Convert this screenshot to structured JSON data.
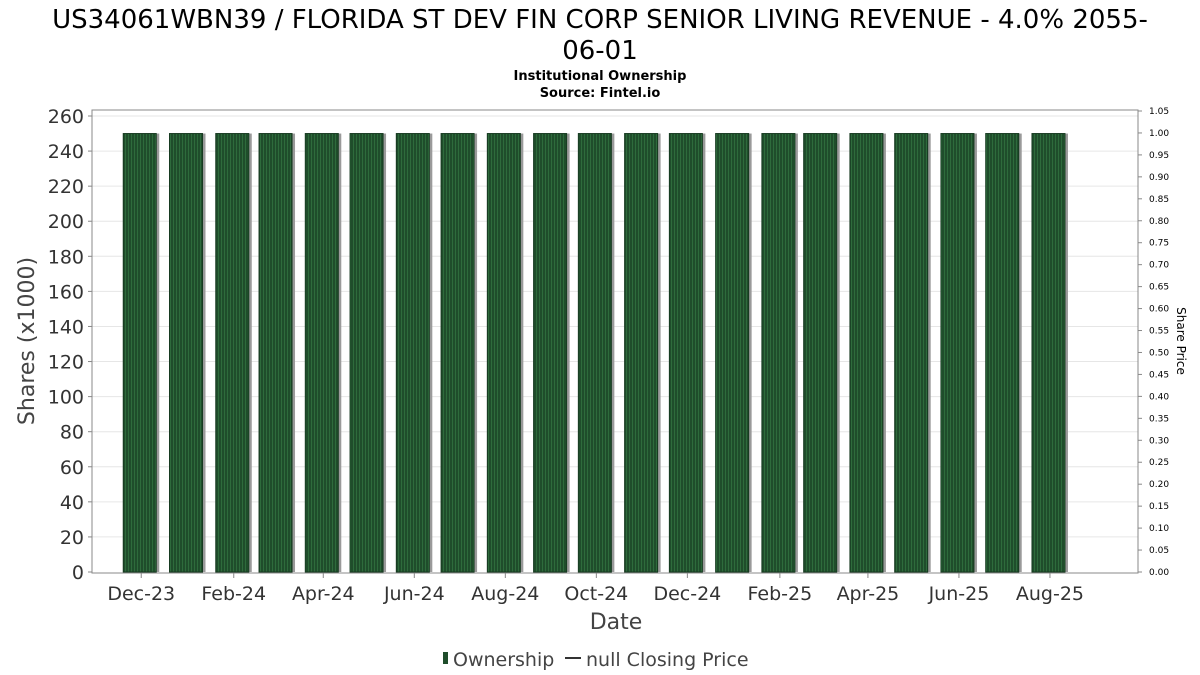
{
  "chart_data": {
    "type": "bar",
    "title": "US34061WBN39 / FLORIDA ST DEV FIN CORP SENIOR LIVING REVENUE - 4.0% 2055-06-01",
    "title_line1": "US34061WBN39 / FLORIDA ST DEV FIN CORP SENIOR LIVING REVENUE - 4.0% 2055-",
    "title_line2": "06-01",
    "subtitle_line1": "Institutional Ownership",
    "subtitle_line2": "Source: Fintel.io",
    "xlabel": "Date",
    "ylabel": "Shares (x1000)",
    "y2label": "Share Price",
    "ylim": [
      0,
      260
    ],
    "y2lim": [
      0,
      1.05
    ],
    "y_ticks": [
      "0",
      "20",
      "40",
      "60",
      "80",
      "100",
      "120",
      "140",
      "160",
      "180",
      "200",
      "220",
      "240",
      "260"
    ],
    "y2_ticks": [
      "0.00",
      "0.05",
      "0.10",
      "0.15",
      "0.20",
      "0.25",
      "0.30",
      "0.35",
      "0.40",
      "0.45",
      "0.50",
      "0.55",
      "0.60",
      "0.65",
      "0.70",
      "0.75",
      "0.80",
      "0.85",
      "0.90",
      "0.95",
      "1.00",
      "1.05"
    ],
    "x_ticks": [
      "Dec-23",
      "Feb-24",
      "Apr-24",
      "Jun-24",
      "Aug-24",
      "Oct-24",
      "Dec-24",
      "Feb-25",
      "Apr-25",
      "Jun-25",
      "Aug-25"
    ],
    "x_range": [
      "2023-10-29",
      "2025-09-29"
    ],
    "grid": true,
    "legend_position": "bottom",
    "series": [
      {
        "name": "Ownership",
        "color": "#1f4d2b",
        "x": [
          "2023-11-30",
          "2023-12-31",
          "2024-01-31",
          "2024-02-29",
          "2024-03-31",
          "2024-04-30",
          "2024-05-31",
          "2024-06-30",
          "2024-07-31",
          "2024-08-31",
          "2024-09-30",
          "2024-10-31",
          "2024-11-30",
          "2024-12-31",
          "2025-01-31",
          "2025-02-28",
          "2025-03-31",
          "2025-04-30",
          "2025-05-31",
          "2025-06-30",
          "2025-07-31"
        ],
        "values": [
          250,
          250,
          250,
          250,
          250,
          250,
          250,
          250,
          250,
          250,
          250,
          250,
          250,
          250,
          250,
          250,
          250,
          250,
          250,
          250,
          250
        ]
      },
      {
        "name": "null Closing Price",
        "color": "#333333",
        "values": []
      }
    ]
  }
}
